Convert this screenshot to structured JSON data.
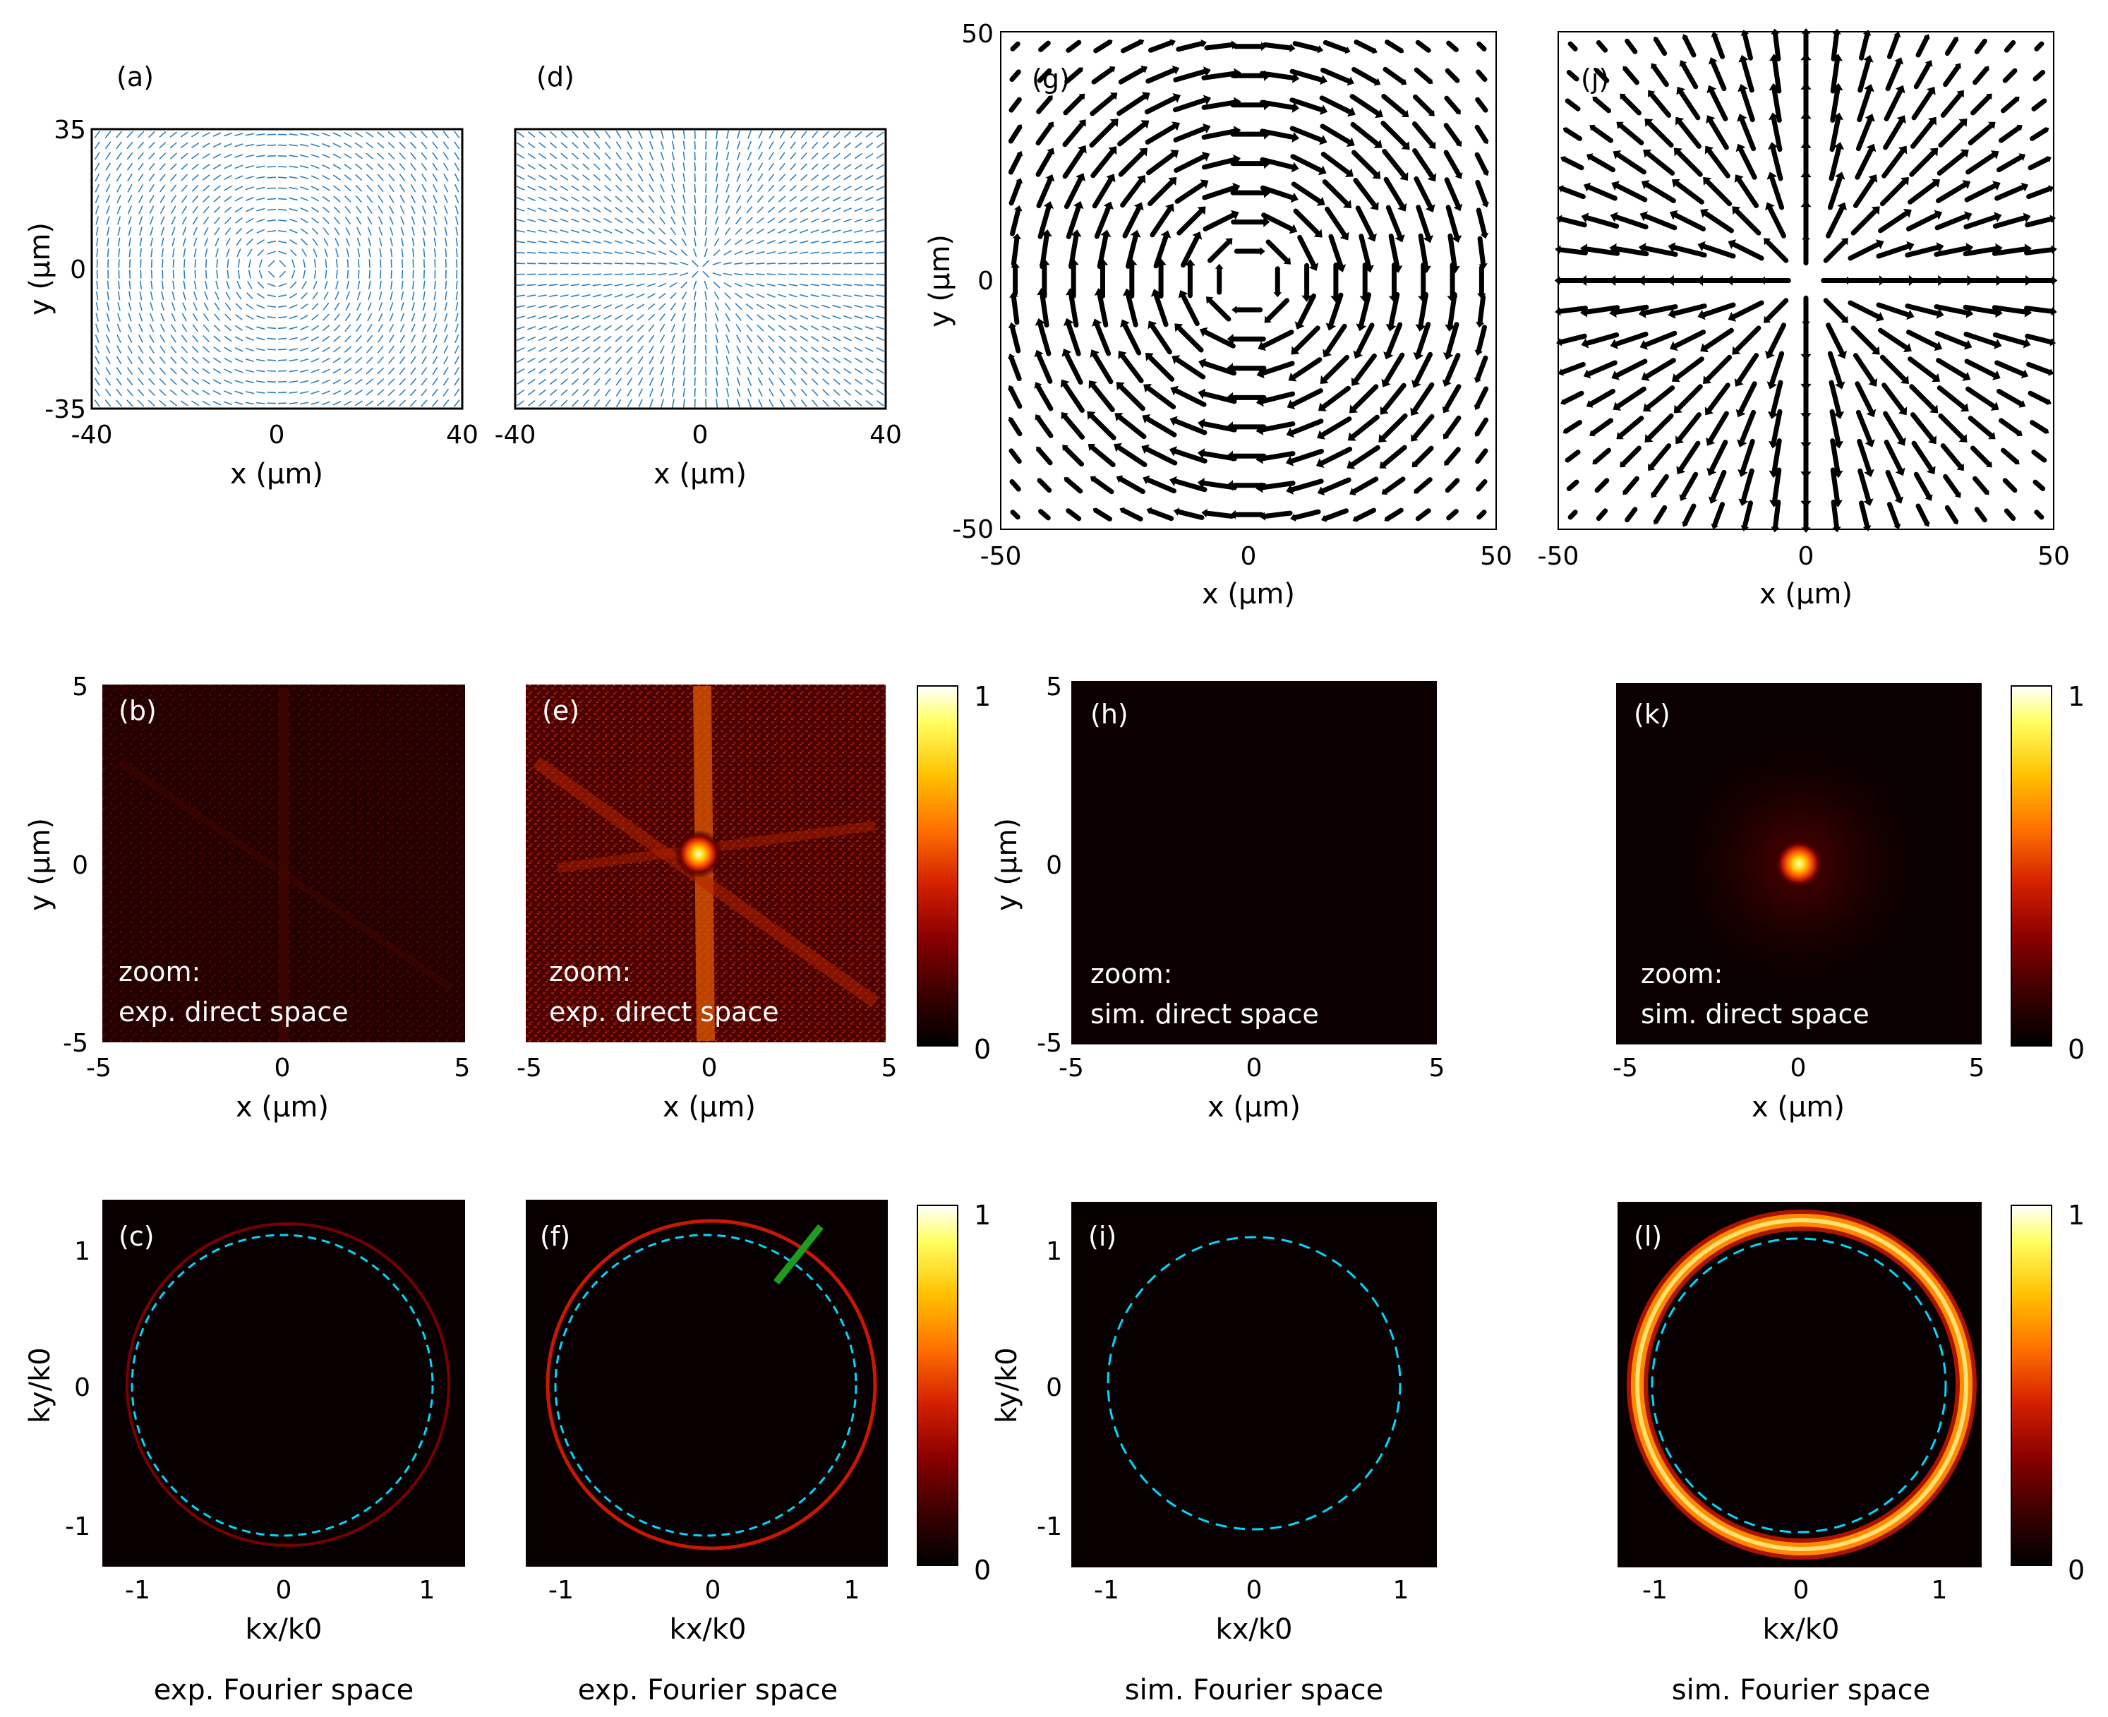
{
  "figure": {
    "panels": {
      "a": {
        "label": "(a)",
        "xlabel": "x (μm)",
        "ylabel": "y (μm)",
        "xticks": [
          "-40",
          "0",
          "40"
        ],
        "yticks": [
          "35",
          "0",
          "-35"
        ],
        "xlim": [
          -40,
          40
        ],
        "ylim": [
          -35,
          35
        ],
        "field": "azimuthal",
        "color": "#2e7fc0"
      },
      "d": {
        "label": "(d)",
        "xlabel": "x (μm)",
        "xticks": [
          "-40",
          "0",
          "40"
        ],
        "xlim": [
          -40,
          40
        ],
        "ylim": [
          -35,
          35
        ],
        "field": "radial",
        "color": "#2e7fc0"
      },
      "g": {
        "label": "(g)",
        "xlabel": "x (μm)",
        "ylabel": "y (μm)",
        "xticks": [
          "-50",
          "0",
          "50"
        ],
        "yticks": [
          "50",
          "0",
          "-50"
        ],
        "xlim": [
          -50,
          50
        ],
        "ylim": [
          -50,
          50
        ],
        "field": "azimuthal",
        "color": "#000000"
      },
      "j": {
        "label": "(j)",
        "xlabel": "x (μm)",
        "xticks": [
          "-50",
          "0",
          "50"
        ],
        "xlim": [
          -50,
          50
        ],
        "ylim": [
          -50,
          50
        ],
        "field": "radial",
        "color": "#000000"
      },
      "b": {
        "label": "(b)",
        "xlabel": "x (μm)",
        "ylabel": "y (μm)",
        "xticks": [
          "-5",
          "0",
          "5"
        ],
        "yticks": [
          "5",
          "0",
          "-5"
        ],
        "note_line1": "zoom:",
        "note_line2": "exp. direct space"
      },
      "e": {
        "label": "(e)",
        "xlabel": "x (μm)",
        "xticks": [
          "-5",
          "0",
          "5"
        ],
        "note_line1": "zoom:",
        "note_line2": "exp. direct space"
      },
      "h": {
        "label": "(h)",
        "xlabel": "x (μm)",
        "ylabel": "y (μm)",
        "xticks": [
          "-5",
          "0",
          "5"
        ],
        "yticks": [
          "5",
          "0",
          "-5"
        ],
        "note_line1": "zoom:",
        "note_line2": "sim. direct space"
      },
      "k": {
        "label": "(k)",
        "xlabel": "x (μm)",
        "xticks": [
          "-5",
          "0",
          "5"
        ],
        "note_line1": "zoom:",
        "note_line2": "sim. direct space"
      },
      "c": {
        "label": "(c)",
        "xlabel": "kx/k0",
        "ylabel": "ky/k0",
        "xticks": [
          "-1",
          "0",
          "1"
        ],
        "yticks": [
          "1",
          "0",
          "-1"
        ],
        "caption": "exp. Fourier space"
      },
      "f": {
        "label": "(f)",
        "xlabel": "kx/k0",
        "xticks": [
          "-1",
          "0",
          "1"
        ],
        "caption": "exp. Fourier space"
      },
      "i": {
        "label": "(i)",
        "xlabel": "kx/k0",
        "ylabel": "ky/k0",
        "xticks": [
          "-1",
          "0",
          "1"
        ],
        "yticks": [
          "1",
          "0",
          "-1"
        ],
        "caption": "sim. Fourier space"
      },
      "l": {
        "label": "(l)",
        "xlabel": "kx/k0",
        "xticks": [
          "-1",
          "0",
          "1"
        ],
        "caption": "sim. Fourier space"
      }
    },
    "colorbar": {
      "max_label": "1",
      "min_label": "0",
      "colormap": [
        "#000000",
        "#3d0000",
        "#8b0000",
        "#d42000",
        "#ff7000",
        "#ffc000",
        "#ffff60",
        "#ffffff"
      ]
    },
    "colors": {
      "dashed_circle": "#00d8ff",
      "marker_line": "#1f9c1f",
      "ring": "#ff7a00"
    }
  }
}
